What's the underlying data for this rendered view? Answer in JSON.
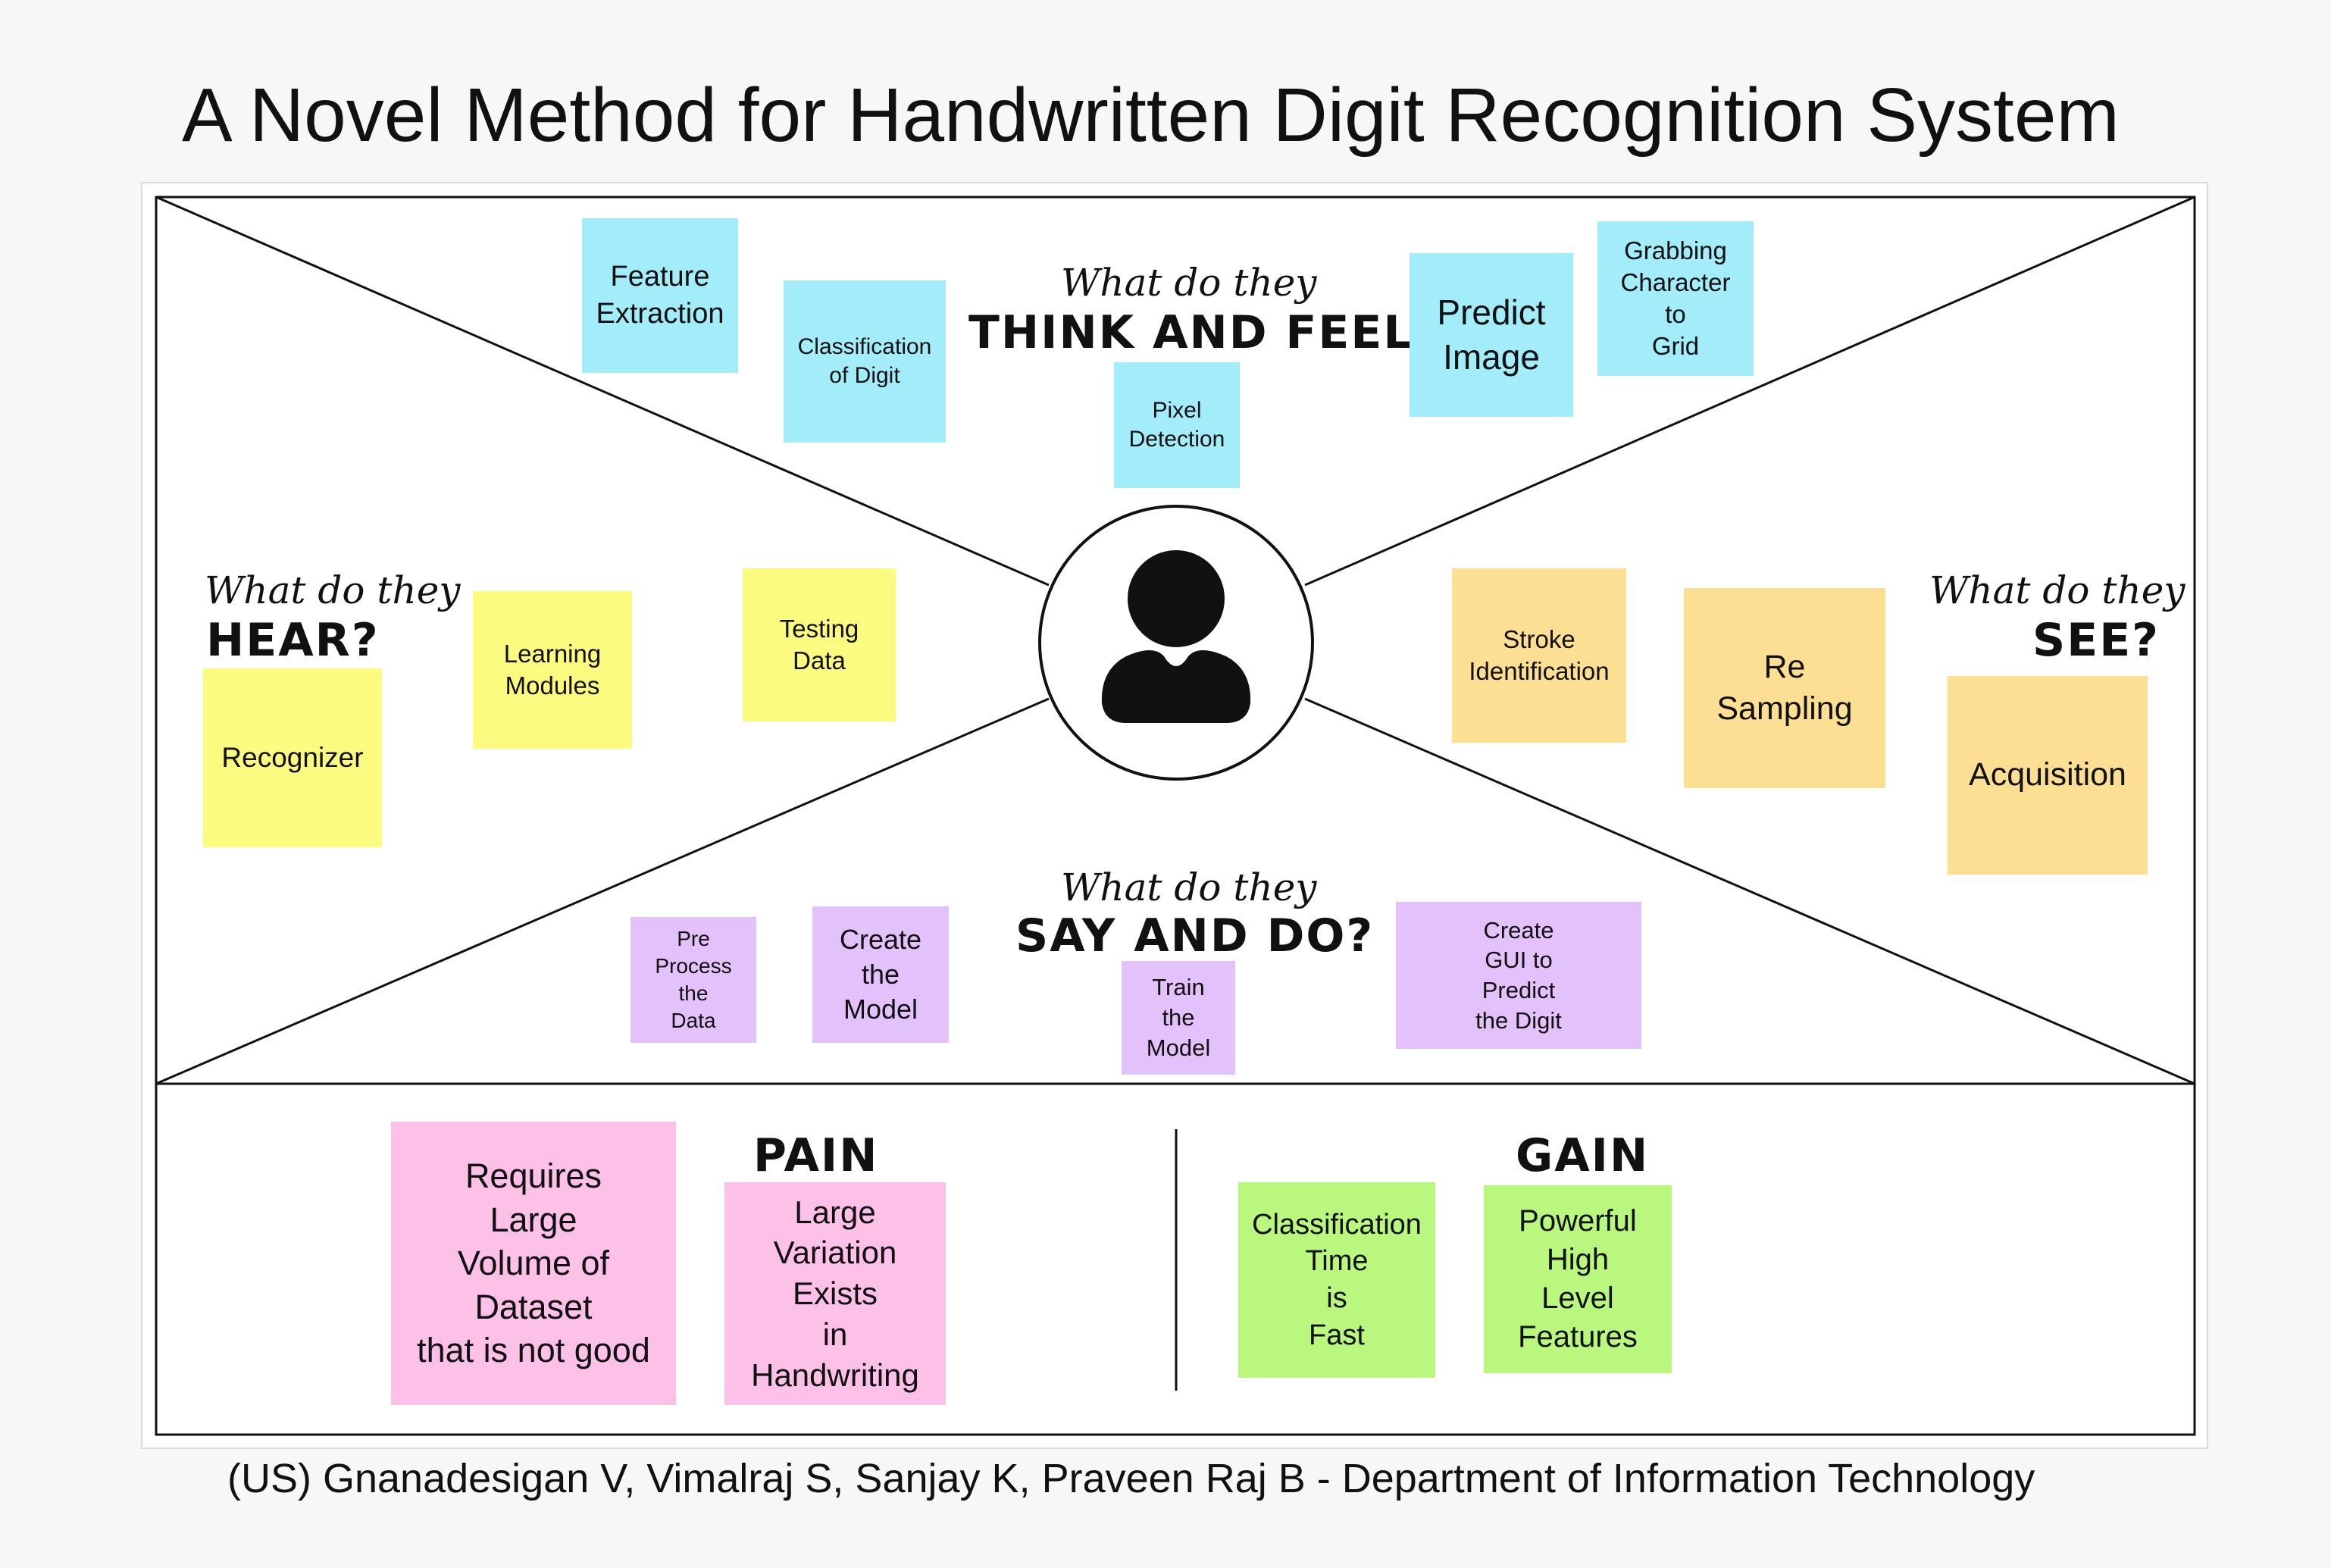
{
  "title": "A Novel Method for Handwritten Digit Recognition System",
  "footer": "(US) Gnanadesigan V,  Vimalraj S, Sanjay K, Praveen Raj B - Department of Information Technology",
  "quadrants": {
    "think": {
      "prompt": "What do they",
      "heading": "THINK AND FEEL?"
    },
    "hear": {
      "prompt": "What do they",
      "heading": "HEAR?"
    },
    "see": {
      "prompt": "What do they",
      "heading": "SEE?"
    },
    "say": {
      "prompt": "What do they",
      "heading": "SAY AND DO?"
    }
  },
  "sections": {
    "pain": "PAIN",
    "gain": "GAIN"
  },
  "notes": {
    "feature_extraction": "Feature\nExtraction",
    "classification_of_digit": "Classification\nof Digit",
    "pixel_detection": "Pixel\nDetection",
    "predict_image": "Predict\nImage",
    "grabbing_character": "Grabbing\nCharacter\nto\nGrid",
    "learning_modules": "Learning\nModules",
    "testing_data": "Testing\nData",
    "recognizer": "Recognizer",
    "stroke_identification": "Stroke\nIdentification",
    "re_sampling": "Re\nSampling",
    "acquisition": "Acquisition",
    "pre_process": "Pre\nProcess\nthe\nData",
    "create_model": "Create\nthe\nModel",
    "train_model": "Train\nthe\nModel",
    "create_gui": "Create\nGUI to\nPredict\nthe Digit",
    "pain_dataset": "Requires\nLarge\nVolume of\nDataset\nthat is not good",
    "pain_variation": "Large\nVariation\nExists\nin\nHandwriting",
    "gain_time": "Classification\nTime\nis\nFast",
    "gain_features": "Powerful\nHigh\nLevel\nFeatures"
  },
  "colors": {
    "think": "#a3ecfa",
    "hear": "#fbfb80",
    "see": "#fddf94",
    "say": "#e3c1fa",
    "pain": "#fdc1e7",
    "gain": "#b9f77f"
  },
  "icons": {
    "persona": "user-avatar-icon"
  }
}
